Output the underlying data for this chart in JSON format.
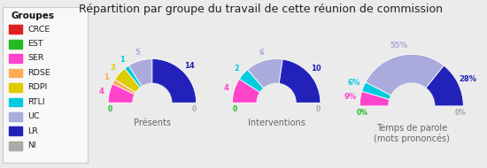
{
  "title": "Répartition par groupe du travail de cette réunion de commission",
  "groups": [
    "CRCE",
    "EST",
    "SER",
    "RDSE",
    "RDPI",
    "RTLI",
    "UC",
    "LR",
    "NI"
  ],
  "colors": [
    "#dd2020",
    "#22bb22",
    "#ff44cc",
    "#ffaa55",
    "#ddcc00",
    "#00ccdd",
    "#aaaadd",
    "#2222bb",
    "#aaaaaa"
  ],
  "presents": [
    0,
    0,
    4,
    1,
    3,
    1,
    5,
    14,
    0
  ],
  "interventions": [
    0,
    0,
    4,
    0,
    0,
    2,
    6,
    10,
    0
  ],
  "temps": [
    0,
    0,
    9,
    0,
    0,
    6,
    55,
    28,
    0
  ],
  "bg_color": "#ebebeb",
  "legend_bg": "#f8f8f8"
}
